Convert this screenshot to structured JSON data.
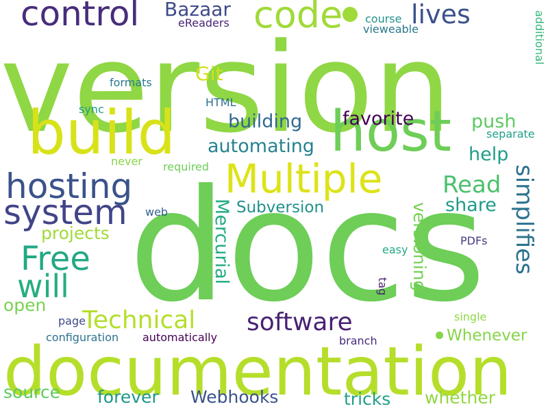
{
  "words": [
    {
      "text": "version",
      "color": "#8fd744"
    },
    {
      "text": "docs",
      "color": "#6ece58"
    },
    {
      "text": "documentation",
      "color": "#b5de2b"
    },
    {
      "text": "build",
      "color": "#d8e219"
    },
    {
      "text": "host",
      "color": "#6ece58"
    },
    {
      "text": "Multiple",
      "color": "#dde318"
    },
    {
      "text": "control",
      "color": "#472d7b"
    },
    {
      "text": "code",
      "color": "#a0da39"
    },
    {
      "text": "hosting",
      "color": "#3b528b"
    },
    {
      "text": "system",
      "color": "#414487"
    },
    {
      "text": "Free",
      "color": "#22a884"
    },
    {
      "text": "will",
      "color": "#27ad81"
    },
    {
      "text": "Technical",
      "color": "#b5de2b"
    },
    {
      "text": "software",
      "color": "#482173"
    },
    {
      "text": "lives",
      "color": "#3b528b"
    },
    {
      "text": "Bazaar",
      "color": "#3e4a89"
    },
    {
      "text": "Git",
      "color": "#d0e11c"
    },
    {
      "text": "Read",
      "color": "#4ac16d"
    },
    {
      "text": "simplifies",
      "color": "#2c728e"
    },
    {
      "text": "favorite",
      "color": "#440154"
    },
    {
      "text": "building",
      "color": "#31688e"
    },
    {
      "text": "automating",
      "color": "#26828e"
    },
    {
      "text": "push",
      "color": "#5ec962"
    },
    {
      "text": "help",
      "color": "#1f9e89"
    },
    {
      "text": "share",
      "color": "#1e9b8a"
    },
    {
      "text": "Mercurial",
      "color": "#25ac82"
    },
    {
      "text": "Subversion",
      "color": "#21918c"
    },
    {
      "text": "projects",
      "color": "#a0da39"
    },
    {
      "text": "versioning",
      "color": "#75d054"
    },
    {
      "text": "open",
      "color": "#7ad151"
    },
    {
      "text": "source",
      "color": "#5ec962"
    },
    {
      "text": "Whenever",
      "color": "#86d549"
    },
    {
      "text": "forever",
      "color": "#1f978b"
    },
    {
      "text": "Webhooks",
      "color": "#3b528b"
    },
    {
      "text": "tricks",
      "color": "#1f9f88"
    },
    {
      "text": "whether",
      "color": "#93d741"
    },
    {
      "text": "eReaders",
      "color": "#482475"
    },
    {
      "text": "course",
      "color": "#21918c"
    },
    {
      "text": "vieweable",
      "color": "#2a788e"
    },
    {
      "text": "formats",
      "color": "#2a788e"
    },
    {
      "text": "HTML",
      "color": "#2d708e"
    },
    {
      "text": "sync",
      "color": "#1f9a8a"
    },
    {
      "text": "never",
      "color": "#86d549"
    },
    {
      "text": "required",
      "color": "#6ece58"
    },
    {
      "text": "separate",
      "color": "#1fa188"
    },
    {
      "text": "additional",
      "color": "#35b779"
    },
    {
      "text": "web",
      "color": "#355f8d"
    },
    {
      "text": "PDFs",
      "color": "#443a83"
    },
    {
      "text": "easy",
      "color": "#22a884"
    },
    {
      "text": "tag",
      "color": "#481f70"
    },
    {
      "text": "page",
      "color": "#3e4989"
    },
    {
      "text": "configuration",
      "color": "#2c728e"
    },
    {
      "text": "automatically",
      "color": "#440154"
    },
    {
      "text": "single",
      "color": "#90d743"
    },
    {
      "text": "branch",
      "color": "#472c7a"
    }
  ],
  "dots": [
    {
      "color": "#a0da39"
    },
    {
      "color": "#86d549"
    }
  ]
}
